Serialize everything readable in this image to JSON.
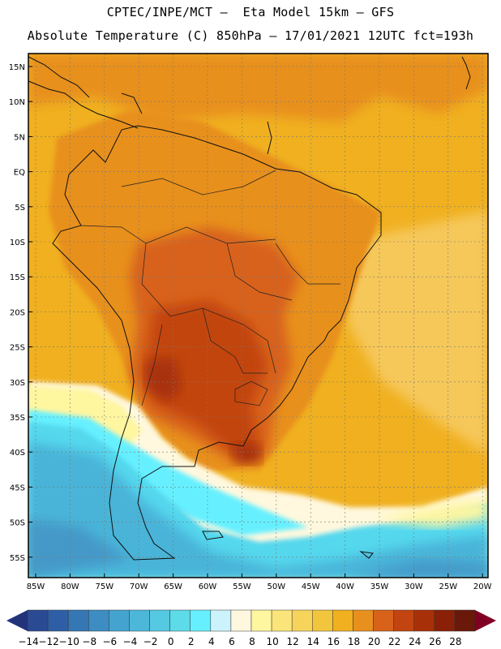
{
  "header": {
    "line1": "CPTEC/INPE/MCT –  Eta Model 15km – GFS",
    "line2": "Absolute Temperature (C) 850hPa – 17/01/2021 12UTC fct=193h"
  },
  "map": {
    "lat_labels": [
      "15N",
      "10N",
      "5N",
      "EQ",
      "5S",
      "10S",
      "15S",
      "20S",
      "25S",
      "30S",
      "35S",
      "40S",
      "45S",
      "50S",
      "55S"
    ],
    "lon_labels": [
      "85W",
      "80W",
      "75W",
      "70W",
      "65W",
      "60W",
      "55W",
      "50W",
      "45W",
      "40W",
      "35W",
      "30W",
      "25W",
      "20W"
    ],
    "colors": {
      "warm_orange": "#f0b020",
      "orange": "#e8901e",
      "dark_orange": "#d8621a",
      "red_brown": "#c24410",
      "deep_red": "#a83008",
      "pale_yellow": "#fff6a0",
      "cream": "#fff8de",
      "light_cyan": "#66f0ff",
      "cyan": "#55d8ee",
      "blue_teal": "#48b4d8",
      "ocean_blue": "#4499c8"
    }
  },
  "colorbar": {
    "labels": [
      "−14",
      "−12",
      "−10",
      "−8",
      "−6",
      "−4",
      "−2",
      "0",
      "2",
      "4",
      "6",
      "8",
      "10",
      "12",
      "14",
      "16",
      "18",
      "20",
      "22",
      "24",
      "26",
      "28"
    ],
    "colors": [
      "#2b4a94",
      "#2e5fa6",
      "#3576b4",
      "#3d8cc2",
      "#45a3cf",
      "#4db7da",
      "#55c9e2",
      "#5ddbe8",
      "#66efff",
      "#ccf3fb",
      "#fff8de",
      "#fff6a0",
      "#fbe57a",
      "#f6d45c",
      "#f2c63c",
      "#f0b020",
      "#e8901e",
      "#d8621a",
      "#c24410",
      "#a83008",
      "#8a2008",
      "#6a180a"
    ],
    "arrow_low": "#22337a",
    "arrow_high": "#800024"
  }
}
